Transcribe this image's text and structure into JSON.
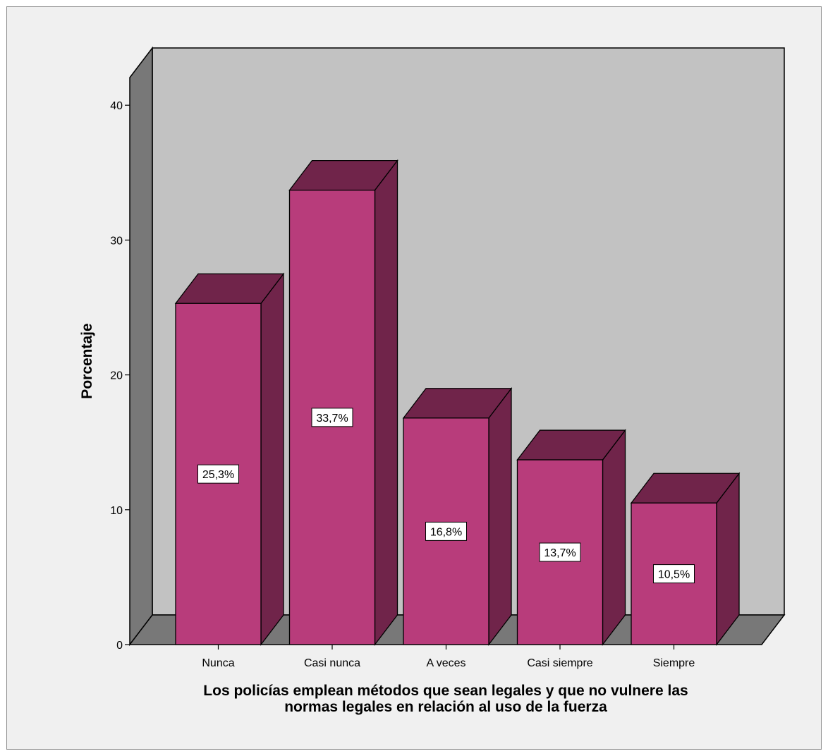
{
  "chart_data": {
    "type": "bar",
    "categories": [
      "Nunca",
      "Casi nunca",
      "A veces",
      "Casi siempre",
      "Siempre"
    ],
    "values": [
      25.3,
      33.7,
      16.8,
      13.7,
      10.5
    ],
    "data_labels": [
      "25,3%",
      "33,7%",
      "16,8%",
      "13,7%",
      "10,5%"
    ],
    "ylabel": "Porcentaje",
    "xlabel_lines": [
      "Los policías emplean métodos que sean legales y que no vulnere las",
      "normas legales en relación al uso de la fuerza"
    ],
    "yticks": [
      "0",
      "10",
      "20",
      "30",
      "40"
    ],
    "ylim": [
      0,
      44
    ],
    "style": "3d",
    "grid": false,
    "legend": "none",
    "colors": {
      "bar_front": "#b83c7b",
      "bar_side": "#70244a",
      "bar_top": "#70244a",
      "wall_back": "#c2c2c2",
      "wall_side": "#787878",
      "floor": "#787878",
      "background": "#f0f0f0"
    }
  }
}
